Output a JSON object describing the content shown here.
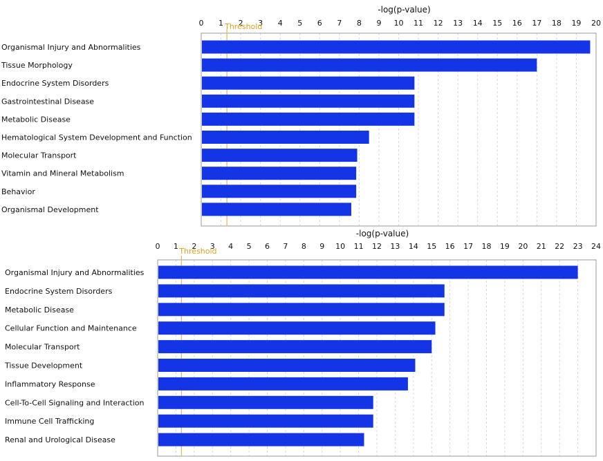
{
  "chart_data": [
    {
      "type": "bar",
      "orientation": "horizontal",
      "xlabel": "-log(p-value)",
      "xlim": [
        0,
        20
      ],
      "ticks": [
        "0",
        "1",
        "2",
        "3",
        "4",
        "5",
        "6",
        "7",
        "8",
        "9",
        "10",
        "11",
        "12",
        "13",
        "14",
        "15",
        "16",
        "17",
        "18",
        "19",
        "20"
      ],
      "threshold_label": "Threshold",
      "threshold": 1.3,
      "grid": true,
      "categories": [
        "Organismal Injury and Abnormalities",
        "Tissue Morphology",
        "Endocrine System Disorders",
        "Gastrointestinal Disease",
        "Metabolic Disease",
        "Hematological System Development and Function",
        "Molecular Transport",
        "Vitamin and Mineral Metabolism",
        "Behavior",
        "Organismal Development"
      ],
      "values": [
        19.7,
        17.0,
        10.8,
        10.8,
        10.8,
        8.5,
        7.9,
        7.85,
        7.85,
        7.6
      ]
    },
    {
      "type": "bar",
      "orientation": "horizontal",
      "xlabel": "-log(p-value)",
      "xlim": [
        0,
        24
      ],
      "ticks": [
        "0",
        "1",
        "2",
        "3",
        "4",
        "5",
        "6",
        "7",
        "8",
        "9",
        "10",
        "11",
        "12",
        "13",
        "14",
        "15",
        "16",
        "17",
        "18",
        "19",
        "20",
        "21",
        "22",
        "23",
        "24"
      ],
      "threshold_label": "Threshold",
      "threshold": 1.3,
      "grid": true,
      "categories": [
        "Organismal Injury and Abnormalities",
        "Endocrine System Disorders",
        "Metabolic Disease",
        "Cellular Function and Maintenance",
        "Molecular Transport",
        "Tissue Development",
        "Inflammatory Response",
        "Cell-To-Cell Signaling and Interaction",
        "Immune Cell Trafficking",
        "Renal and Urological Disease"
      ],
      "values": [
        23.0,
        15.7,
        15.7,
        15.2,
        15.0,
        14.1,
        13.7,
        11.8,
        11.8,
        11.3
      ]
    }
  ]
}
